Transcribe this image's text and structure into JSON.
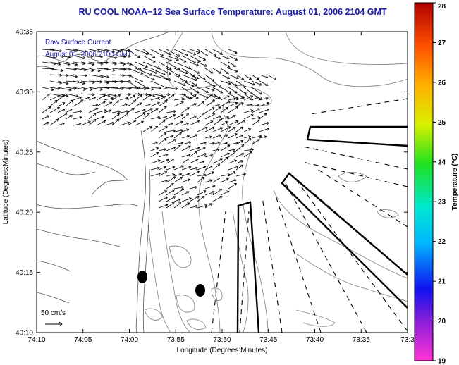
{
  "title": "RU COOL  NOAA−12  Sea Surface Temperature:  August 01, 2006 2104 GMT",
  "legend": {
    "line1": "Raw Surface Current",
    "line2": "August 01, 2006 2100 GMT",
    "scale_label": "50 cm/s"
  },
  "axes": {
    "xlabel": "Longitude (Degrees:Minutes)",
    "ylabel": "Latitude (Degrees:Minutes)",
    "xticks": [
      "74:10",
      "74:05",
      "74:00",
      "73:55",
      "73:50",
      "73:45",
      "73:40",
      "73:35",
      "73:3"
    ],
    "yticks": [
      "40:35",
      "40:30",
      "40:25",
      "40:20",
      "40:15",
      "40:10"
    ]
  },
  "colorbar": {
    "label": "Temperature (°C)",
    "ticks": [
      "28",
      "27",
      "26",
      "25",
      "24",
      "23",
      "22",
      "21",
      "20",
      "19"
    ],
    "range": [
      19,
      28
    ]
  },
  "colors": {
    "title": "#1a1aa8",
    "contour": "#8a8a8a",
    "arrow": "#000000"
  }
}
